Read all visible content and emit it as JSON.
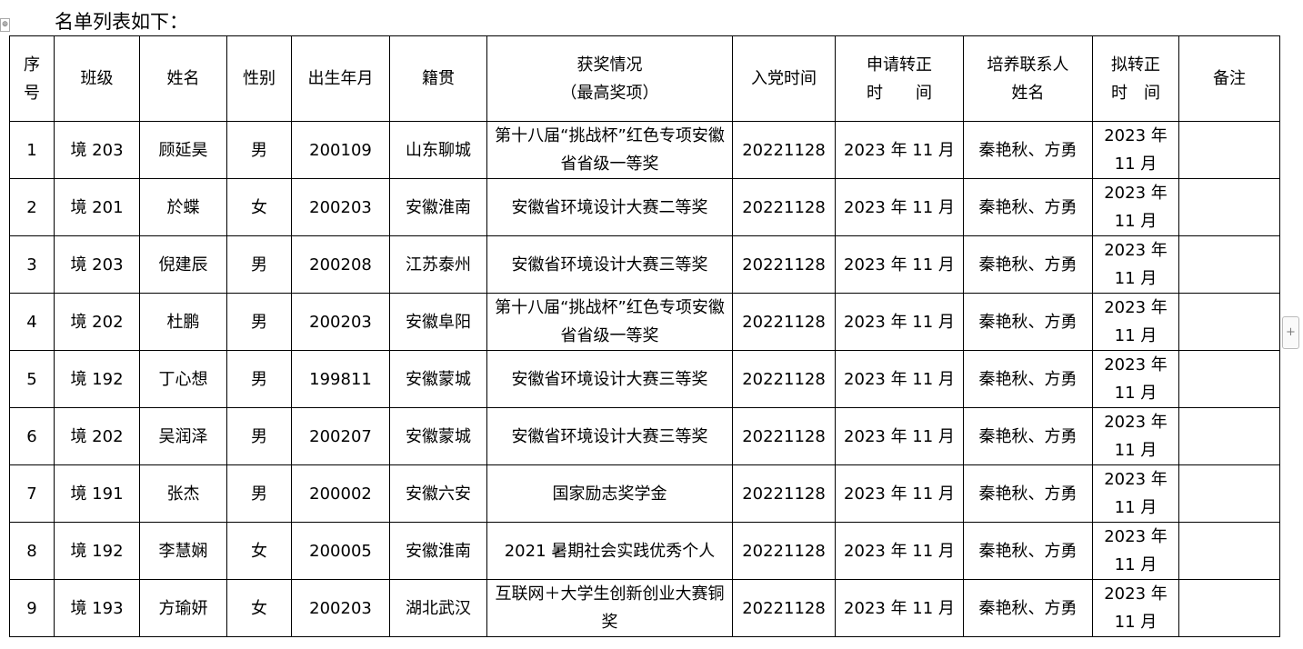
{
  "title": "名单列表如下：",
  "headers": [
    "序号",
    "班级",
    "姓名",
    "性别",
    "出生年月",
    "籍贯",
    "获奖情况（最高奖项）",
    "入党时间",
    "申请转正时　　间",
    "培养联系人姓名",
    "拟转正时　间",
    "备注"
  ],
  "header_lines": [
    [
      "序",
      "号"
    ],
    [
      "班级"
    ],
    [
      "姓名"
    ],
    [
      "性别"
    ],
    [
      "出生年月"
    ],
    [
      "籍贯"
    ],
    [
      "获奖情况",
      "（最高奖项）"
    ],
    [
      "入党时间"
    ],
    [
      "申请转正",
      "时　　间"
    ],
    [
      "培养联系人",
      "姓名"
    ],
    [
      "拟转正",
      "时　间"
    ],
    [
      "备注"
    ]
  ],
  "rows": [
    [
      "1",
      "境 203",
      "顾延昊",
      "男",
      "200109",
      "山东聊城",
      "第十八届“挑战杯”红色专项安徽省省级一等奖",
      "20221128",
      "2023 年 11 月",
      "秦艳秋、方勇",
      "2023 年 11 月",
      ""
    ],
    [
      "2",
      "境 201",
      "於蝶",
      "女",
      "200203",
      "安徽淮南",
      "安徽省环境设计大赛二等奖",
      "20221128",
      "2023 年 11 月",
      "秦艳秋、方勇",
      "2023 年 11 月",
      ""
    ],
    [
      "3",
      "境 203",
      "倪建辰",
      "男",
      "200208",
      "江苏泰州",
      "安徽省环境设计大赛三等奖",
      "20221128",
      "2023 年 11 月",
      "秦艳秋、方勇",
      "2023 年 11 月",
      ""
    ],
    [
      "4",
      "境 202",
      "杜鹏",
      "男",
      "200203",
      "安徽阜阳",
      "第十八届“挑战杯”红色专项安徽省省级一等奖",
      "20221128",
      "2023 年 11 月",
      "秦艳秋、方勇",
      "2023 年 11 月",
      ""
    ],
    [
      "5",
      "境 192",
      "丁心想",
      "男",
      "199811",
      "安徽蒙城",
      "安徽省环境设计大赛三等奖",
      "20221128",
      "2023 年 11 月",
      "秦艳秋、方勇",
      "2023 年 11 月",
      ""
    ],
    [
      "6",
      "境 202",
      "吴润泽",
      "男",
      "200207",
      "安徽蒙城",
      "安徽省环境设计大赛三等奖",
      "20221128",
      "2023 年 11 月",
      "秦艳秋、方勇",
      "2023 年 11 月",
      ""
    ],
    [
      "7",
      "境 191",
      "张杰",
      "男",
      "200002",
      "安徽六安",
      "国家励志奖学金",
      "20221128",
      "2023 年 11 月",
      "秦艳秋、方勇",
      "2023 年 11 月",
      ""
    ],
    [
      "8",
      "境 192",
      "李慧娴",
      "女",
      "200005",
      "安徽淮南",
      "2021 暑期社会实践优秀个人",
      "20221128",
      "2023 年 11 月",
      "秦艳秋、方勇",
      "2023 年 11 月",
      ""
    ],
    [
      "9",
      "境 193",
      "方瑜妍",
      "女",
      "200203",
      "湖北武汉",
      "互联网＋大学生创新创业大赛铜奖",
      "20221128",
      "2023 年 11 月",
      "秦艳秋、方勇",
      "2023 年 11 月",
      ""
    ]
  ],
  "icons": {
    "table_handle": "move-icon",
    "add_row": "plus-icon"
  }
}
